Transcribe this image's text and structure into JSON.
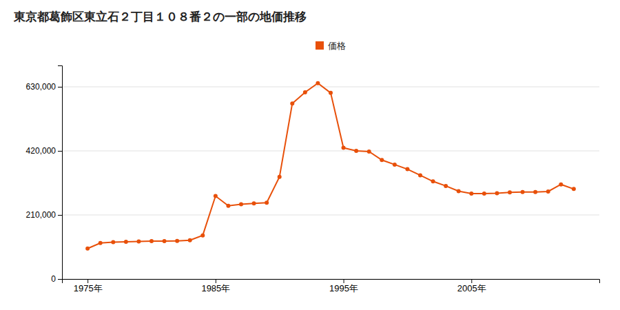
{
  "chart_data": {
    "type": "line",
    "title": "東京都葛飾区東立石２丁目１０８番２の一部の地価推移",
    "x": [
      1975,
      1976,
      1977,
      1978,
      1979,
      1980,
      1981,
      1982,
      1983,
      1984,
      1985,
      1986,
      1987,
      1988,
      1989,
      1990,
      1991,
      1992,
      1993,
      1994,
      1995,
      1996,
      1997,
      1998,
      1999,
      2000,
      2001,
      2002,
      2003,
      2004,
      2005,
      2006,
      2007,
      2008,
      2009,
      2010,
      2011,
      2012,
      2013
    ],
    "series": [
      {
        "name": "価格",
        "color": "#e8500a",
        "marker": "circle",
        "line_style": "solid",
        "values": [
          100000,
          118000,
          121000,
          122000,
          123000,
          124000,
          124000,
          125000,
          127000,
          143000,
          272000,
          240000,
          245000,
          248000,
          250000,
          335000,
          575000,
          612000,
          642000,
          610000,
          430000,
          420000,
          418000,
          390000,
          375000,
          360000,
          340000,
          320000,
          305000,
          288000,
          280000,
          280000,
          281000,
          284000,
          285000,
          285000,
          287000,
          310000,
          295000
        ]
      }
    ],
    "xlim": [
      1973,
      2015
    ],
    "xticks": [
      {
        "value": 1975,
        "label": "1975年"
      },
      {
        "value": 1985,
        "label": "1985年"
      },
      {
        "value": 1995,
        "label": "1995年"
      },
      {
        "value": 2005,
        "label": "2005年"
      }
    ],
    "ylim": [
      0,
      700000
    ],
    "yticks": [
      0,
      {
        "value": 210000,
        "label": "210,000"
      },
      {
        "value": 420000,
        "label": "420,000"
      },
      {
        "value": 630000,
        "label": "630,000"
      }
    ],
    "grid": true,
    "legend": "top"
  }
}
